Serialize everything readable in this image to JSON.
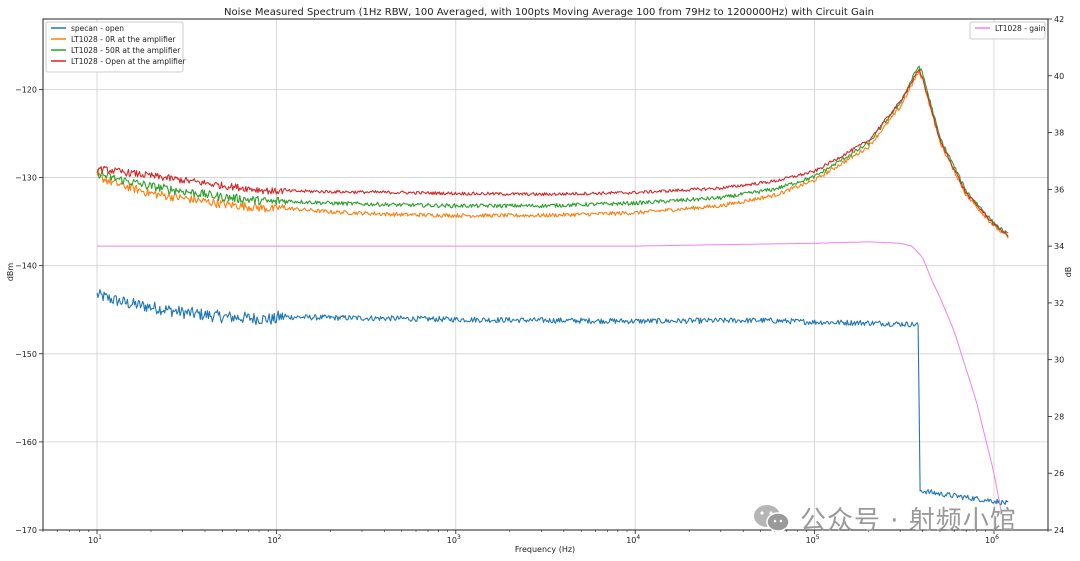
{
  "chart_data": {
    "type": "line",
    "title": "Noise Measured Spectrum (1Hz RBW, 100 Averaged, with 100pts Moving Average 100 from 79Hz to 1200000Hz) with Circuit Gain",
    "xlabel": "Frequency (Hz)",
    "ylabel": "dBm",
    "y2label": "dB",
    "xscale": "log",
    "xlim": [
      5,
      2000000
    ],
    "ylim": [
      -170,
      -112
    ],
    "y2lim": [
      24,
      42
    ],
    "x_ticks": [
      {
        "value": 10,
        "base": "10",
        "exp": "1"
      },
      {
        "value": 100,
        "base": "10",
        "exp": "2"
      },
      {
        "value": 1000,
        "base": "10",
        "exp": "3"
      },
      {
        "value": 10000,
        "base": "10",
        "exp": "4"
      },
      {
        "value": 100000,
        "base": "10",
        "exp": "5"
      },
      {
        "value": 1000000,
        "base": "10",
        "exp": "6"
      }
    ],
    "y_ticks": [
      "−120",
      "−130",
      "−140",
      "−150",
      "−160",
      "−170"
    ],
    "y_tick_values": [
      -120,
      -130,
      -140,
      -150,
      -160,
      -170
    ],
    "y2_ticks": [
      "42",
      "40",
      "38",
      "36",
      "34",
      "32",
      "30",
      "28",
      "26",
      "24"
    ],
    "y2_tick_values": [
      42,
      40,
      38,
      36,
      34,
      32,
      30,
      28,
      26,
      24
    ],
    "grid": true,
    "legend_left": [
      "specan - open",
      "LT1028 - 0R at the amplifier",
      "LT1028 - 50R at the amplifier",
      "LT1028 - Open at the amplifier"
    ],
    "legend_right": [
      "LT1028 - gain"
    ],
    "series": [
      {
        "name": "specan - open",
        "axis": "left",
        "color": "#1f77b4",
        "noise": 0.7,
        "x": [
          10,
          12,
          15,
          20,
          30,
          50,
          80,
          100,
          101,
          200,
          500,
          1000,
          3000,
          10000,
          50000,
          100000,
          200000,
          300000,
          380000,
          385000,
          500000,
          700000,
          1000000,
          1200000
        ],
        "y": [
          -143.3,
          -143.8,
          -144.3,
          -144.7,
          -145.3,
          -145.8,
          -146.0,
          -146.1,
          -145.8,
          -145.9,
          -146.0,
          -146.1,
          -146.2,
          -146.3,
          -146.2,
          -146.4,
          -146.5,
          -146.6,
          -146.7,
          -165.5,
          -165.9,
          -166.3,
          -166.7,
          -167.0
        ]
      },
      {
        "name": "LT1028 - 0R at the amplifier",
        "axis": "left",
        "color": "#ff7f0e",
        "noise": 0.5,
        "x": [
          10,
          12,
          20,
          50,
          100,
          101,
          200,
          500,
          1000,
          3000,
          10000,
          30000,
          60000,
          100000,
          200000,
          300000,
          380000,
          400000,
          500000,
          700000,
          1000000,
          1200000
        ],
        "y": [
          -129.8,
          -130.5,
          -131.8,
          -133.0,
          -133.6,
          -133.4,
          -133.9,
          -134.2,
          -134.3,
          -134.3,
          -134.0,
          -133.2,
          -132.0,
          -130.3,
          -126.5,
          -122.0,
          -118.0,
          -118.8,
          -126.0,
          -132.0,
          -135.5,
          -136.8
        ]
      },
      {
        "name": "LT1028 - 50R at the amplifier",
        "axis": "left",
        "color": "#2ca02c",
        "noise": 0.5,
        "x": [
          10,
          12,
          20,
          50,
          100,
          101,
          200,
          500,
          1000,
          3000,
          10000,
          30000,
          60000,
          100000,
          200000,
          300000,
          380000,
          400000,
          500000,
          700000,
          1000000,
          1200000
        ],
        "y": [
          -129.5,
          -130.0,
          -131.0,
          -132.2,
          -132.8,
          -132.6,
          -132.9,
          -133.1,
          -133.2,
          -133.2,
          -132.9,
          -132.3,
          -131.3,
          -129.9,
          -126.1,
          -121.5,
          -117.3,
          -118.2,
          -125.5,
          -131.5,
          -135.2,
          -136.5
        ]
      },
      {
        "name": "LT1028 - Open at the amplifier",
        "axis": "left",
        "color": "#d62728",
        "noise": 0.4,
        "x": [
          10,
          12,
          20,
          50,
          100,
          101,
          200,
          500,
          1000,
          3000,
          10000,
          30000,
          60000,
          100000,
          200000,
          300000,
          380000,
          400000,
          500000,
          700000,
          1000000,
          1200000
        ],
        "y": [
          -129.0,
          -129.2,
          -129.8,
          -130.9,
          -131.6,
          -131.5,
          -131.6,
          -131.7,
          -131.8,
          -131.9,
          -131.7,
          -131.2,
          -130.4,
          -129.3,
          -125.8,
          -121.4,
          -117.8,
          -118.7,
          -125.8,
          -131.8,
          -135.3,
          -136.6
        ]
      },
      {
        "name": "LT1028 - gain",
        "axis": "right",
        "color": "#ee82ee",
        "noise": 0,
        "x": [
          10,
          100,
          1000,
          10000,
          30000,
          100000,
          200000,
          300000,
          350000,
          400000,
          450000,
          500000,
          600000,
          800000,
          1000000,
          1100000
        ],
        "y": [
          34.0,
          34.0,
          34.0,
          34.0,
          34.05,
          34.1,
          34.15,
          34.1,
          34.0,
          33.6,
          32.8,
          32.2,
          31.0,
          28.5,
          26.0,
          24.6
        ]
      }
    ]
  },
  "watermark": {
    "text": "公众号 · 射频小馆"
  }
}
